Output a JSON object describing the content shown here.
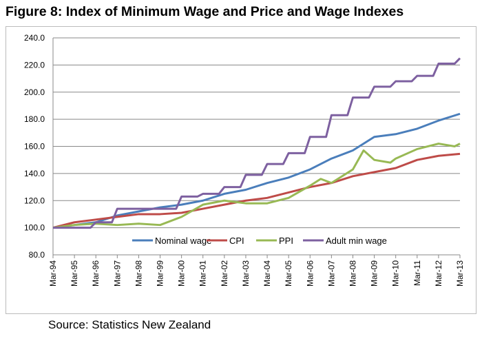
{
  "title": "Figure 8: Index of Minimum Wage and Price and Wage Indexes",
  "source": "Source: Statistics New Zealand",
  "chart_data": {
    "type": "line",
    "title": "Figure 8: Index of Minimum Wage and Price and Wage Indexes",
    "xlabel": "",
    "ylabel": "",
    "ylim": [
      80,
      240
    ],
    "yticks": [
      "80.0",
      "100.0",
      "120.0",
      "140.0",
      "160.0",
      "180.0",
      "200.0",
      "220.0",
      "240.0"
    ],
    "xticks": [
      "Mar-94",
      "Mar-95",
      "Mar-96",
      "Mar-97",
      "Mar-98",
      "Mar-99",
      "Mar-00",
      "Mar-01",
      "Mar-02",
      "Mar-03",
      "Mar-04",
      "Mar-05",
      "Mar-06",
      "Mar-07",
      "Mar-08",
      "Mar-09",
      "Mar-10",
      "Mar-11",
      "Mar-12",
      "Mar-13"
    ],
    "grid": "horizontal",
    "legend": "bottom-inside",
    "series": [
      {
        "name": "Nominal wage",
        "color": "#4a7ebb",
        "points": [
          [
            "Mar-94",
            100
          ],
          [
            "Mar-95",
            102
          ],
          [
            "Mar-96",
            104
          ],
          [
            "Mar-97",
            109
          ],
          [
            "Mar-98",
            112
          ],
          [
            "Mar-99",
            115
          ],
          [
            "Mar-00",
            117
          ],
          [
            "Mar-01",
            120
          ],
          [
            "Mar-02",
            125
          ],
          [
            "Mar-03",
            128
          ],
          [
            "Mar-04",
            133
          ],
          [
            "Mar-05",
            137
          ],
          [
            "Mar-06",
            143
          ],
          [
            "Mar-07",
            151
          ],
          [
            "Mar-08",
            157
          ],
          [
            "Mar-09",
            167
          ],
          [
            "Mar-10",
            169
          ],
          [
            "Mar-11",
            173
          ],
          [
            "Mar-12",
            179
          ],
          [
            "Mar-13",
            184
          ]
        ]
      },
      {
        "name": "CPI",
        "color": "#be4b48",
        "points": [
          [
            "Mar-94",
            100
          ],
          [
            "Mar-95",
            104
          ],
          [
            "Mar-96",
            106
          ],
          [
            "Mar-97",
            108
          ],
          [
            "Mar-98",
            110
          ],
          [
            "Mar-99",
            110
          ],
          [
            "Mar-00",
            111
          ],
          [
            "Mar-01",
            114
          ],
          [
            "Mar-02",
            117
          ],
          [
            "Mar-03",
            120
          ],
          [
            "Mar-04",
            122
          ],
          [
            "Mar-05",
            126
          ],
          [
            "Mar-06",
            130
          ],
          [
            "Mar-07",
            133
          ],
          [
            "Mar-08",
            138
          ],
          [
            "Mar-09",
            141
          ],
          [
            "Mar-10",
            144
          ],
          [
            "Mar-11",
            150
          ],
          [
            "Mar-12",
            153
          ],
          [
            "Mar-13",
            154.5
          ]
        ]
      },
      {
        "name": "PPI",
        "color": "#98b954",
        "points": [
          [
            "Mar-94",
            100
          ],
          [
            "Mar-95",
            102
          ],
          [
            "Mar-96",
            103
          ],
          [
            "Mar-97",
            102
          ],
          [
            "Mar-98",
            103
          ],
          [
            "Mar-99",
            102
          ],
          [
            "Mar-00",
            108
          ],
          [
            "Mar-01",
            117
          ],
          [
            "Mar-02",
            120
          ],
          [
            "Mar-03",
            118
          ],
          [
            "Mar-04",
            118
          ],
          [
            "Mar-05",
            122
          ],
          [
            "Mar-06",
            131
          ],
          [
            "Sep-06",
            136
          ],
          [
            "Mar-07",
            133
          ],
          [
            "Mar-08",
            143
          ],
          [
            "Sep-08",
            157
          ],
          [
            "Mar-09",
            150
          ],
          [
            "Dec-09",
            148
          ],
          [
            "Mar-10",
            151
          ],
          [
            "Mar-11",
            158
          ],
          [
            "Mar-12",
            162
          ],
          [
            "Dec-12",
            160
          ],
          [
            "Mar-13",
            162
          ]
        ]
      },
      {
        "name": "Adult min wage",
        "color": "#7d60a0",
        "points": [
          [
            "Mar-94",
            100
          ],
          [
            "Dec-95",
            100
          ],
          [
            "Mar-96",
            104
          ],
          [
            "Dec-96",
            104
          ],
          [
            "Mar-97",
            114
          ],
          [
            "Dec-99",
            114
          ],
          [
            "Mar-00",
            123
          ],
          [
            "Dec-00",
            123
          ],
          [
            "Mar-01",
            125
          ],
          [
            "Dec-01",
            125
          ],
          [
            "Mar-02",
            130
          ],
          [
            "Dec-02",
            130
          ],
          [
            "Mar-03",
            139
          ],
          [
            "Dec-03",
            139
          ],
          [
            "Mar-04",
            147
          ],
          [
            "Dec-04",
            147
          ],
          [
            "Mar-05",
            155
          ],
          [
            "Dec-05",
            155
          ],
          [
            "Mar-06",
            167
          ],
          [
            "Dec-06",
            167
          ],
          [
            "Mar-07",
            183
          ],
          [
            "Dec-07",
            183
          ],
          [
            "Mar-08",
            196
          ],
          [
            "Dec-08",
            196
          ],
          [
            "Mar-09",
            204
          ],
          [
            "Dec-09",
            204
          ],
          [
            "Mar-10",
            208
          ],
          [
            "Dec-10",
            208
          ],
          [
            "Mar-11",
            212
          ],
          [
            "Dec-11",
            212
          ],
          [
            "Mar-12",
            221
          ],
          [
            "Dec-12",
            221
          ],
          [
            "Mar-13",
            225
          ]
        ]
      }
    ]
  }
}
